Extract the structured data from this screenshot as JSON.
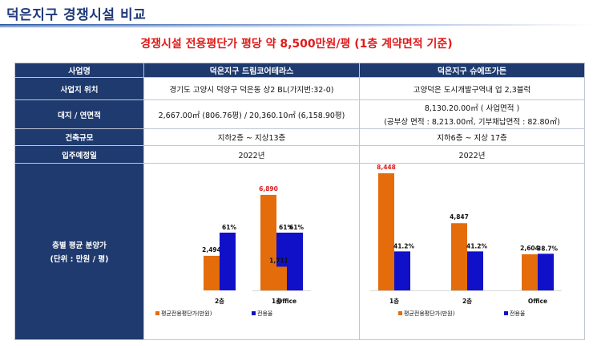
{
  "page": {
    "title": "덕은지구 경쟁시설 비교",
    "subtitle": "경쟁시설 전용평단가 평당 약 8,500만원/평 (1층 계약면적 기준)"
  },
  "table": {
    "header": {
      "label": "사업명",
      "site1": "덕은지구 드림코어테라스",
      "site2": "덕은지구 슈에뜨가든"
    },
    "rows": {
      "location": {
        "label": "사업지 위치",
        "site1": "경기도 고양시 덕양구 덕은동 상2 BL(가지번:32-0)",
        "site2": "고양덕은 도시개발구역내 업 2,3블럭"
      },
      "area": {
        "label": "대지 / 연면적",
        "site1": "2,667.00㎡ (806.76평) / 20,360.10㎡ (6,158.90평)",
        "site2_line1": "8,130.20.00㎡ ( 사업면적 )",
        "site2_line2": "(공부상 면적 : 8,213.00㎡, 기부채납면적 : 82.80㎡)"
      },
      "scale": {
        "label": "건축규모",
        "site1": "지하2층 ~ 지상13층",
        "site2": "지하6층 ~ 지상 17층"
      },
      "move_in": {
        "label": "입주예정일",
        "site1": "2022년",
        "site2": "2022년"
      },
      "chart_row": {
        "label_line1": "층별 평균 분양가",
        "label_line2": "(단위 : 만원 / 평)"
      }
    }
  },
  "chart_data": [
    {
      "type": "bar",
      "categories": [
        "1층",
        "2층",
        "Office"
      ],
      "series": [
        {
          "name": "평균전용평단가(만원)",
          "values": [
            6890,
            2494,
            1711
          ],
          "labels": [
            "6,890",
            "2,494",
            "1,711"
          ],
          "color": "#e46c0a"
        },
        {
          "name": "전용율",
          "values": [
            61,
            61,
            61
          ],
          "labels": [
            "61%",
            "61%",
            "61%"
          ],
          "color": "#1010c8"
        }
      ],
      "legend": "bottom"
    },
    {
      "type": "bar",
      "categories": [
        "1층",
        "2층",
        "Office"
      ],
      "series": [
        {
          "name": "평균전용평단가(만원)",
          "values": [
            8448,
            4847,
            2604
          ],
          "labels": [
            "8,448",
            "4,847",
            "2,604"
          ],
          "color": "#e46c0a"
        },
        {
          "name": "전용율",
          "values": [
            41.2,
            41.2,
            38.7
          ],
          "labels": [
            "41.2%",
            "41.2%",
            "38.7%"
          ],
          "color": "#1010c8"
        }
      ],
      "legend": "bottom"
    }
  ],
  "colors": {
    "header_bg": "#1f3a6e",
    "title": "#1f3a7a",
    "subtitle": "#e01a1a",
    "price_bar": "#e46c0a",
    "ratio_bar": "#1010c8",
    "highlight_label": "#e01a1a"
  }
}
